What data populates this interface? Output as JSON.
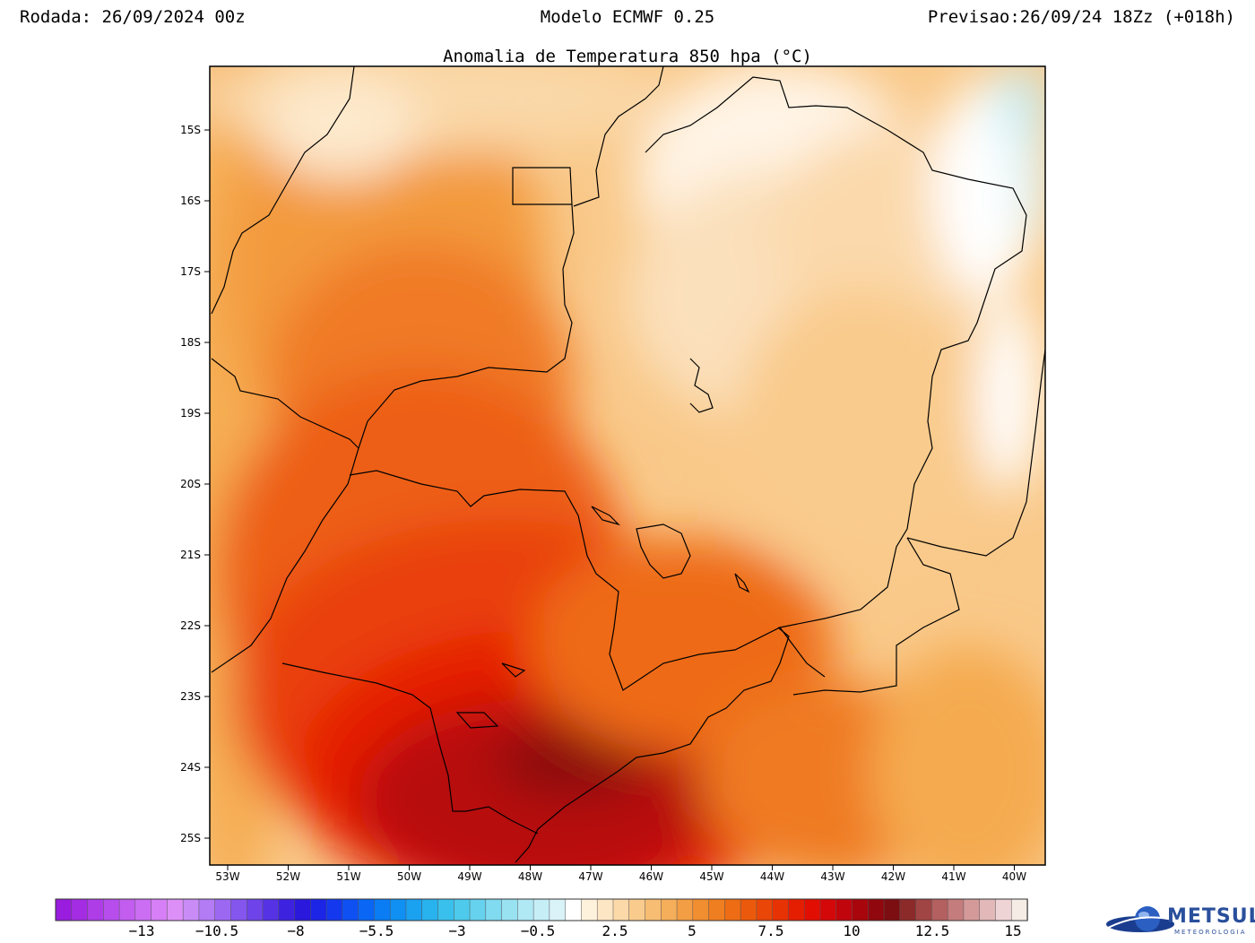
{
  "header": {
    "left": "Rodada: 26/09/2024 00z",
    "center": "Modelo ECMWF 0.25",
    "right": "Previsao:26/09/24 18Zz (+018h)"
  },
  "map": {
    "title": "Anomalia de Temperatura 850 hpa (°C)",
    "lat_labels": [
      "15S",
      "16S",
      "17S",
      "18S",
      "19S",
      "20S",
      "21S",
      "22S",
      "23S",
      "24S",
      "25S"
    ],
    "lon_labels": [
      "53W",
      "52W",
      "51W",
      "50W",
      "49W",
      "48W",
      "47W",
      "46W",
      "45W",
      "44W",
      "43W",
      "42W",
      "41W",
      "40W"
    ],
    "lat_range": [
      -25.4,
      -14.1
    ],
    "lon_range": [
      -53.4,
      -39.6
    ]
  },
  "colorbar": {
    "labels": [
      "−13",
      "−10.5",
      "−8",
      "−5.5",
      "−3",
      "−0.5",
      "2.5",
      "5",
      "7.5",
      "10",
      "12.5",
      "15"
    ],
    "colors": [
      "#9a1ddf",
      "#a42de3",
      "#ae3de8",
      "#b84ded",
      "#c25df0",
      "#cc6ef3",
      "#d67ff6",
      "#dd8ff8",
      "#c98cf7",
      "#b37bf4",
      "#9d68f1",
      "#8556ee",
      "#6e44ea",
      "#5532e4",
      "#3d22df",
      "#2a18dc",
      "#1c24e6",
      "#1438ee",
      "#0e50f2",
      "#0a66f4",
      "#0a7cf4",
      "#1090f2",
      "#1aa2f0",
      "#28b2ee",
      "#3ac0ec",
      "#4ecaec",
      "#66d2ee",
      "#80daf0",
      "#98e2f2",
      "#b0e8f4",
      "#c6eef6",
      "#daf3f8",
      "#ffffff",
      "#fff2dc",
      "#fde6c4",
      "#fbd9a8",
      "#f9cb8c",
      "#f7bd72",
      "#f5ae5a",
      "#f39e44",
      "#f18e30",
      "#ef7e20",
      "#ed6c14",
      "#eb5a0c",
      "#e94608",
      "#e73204",
      "#e51e02",
      "#e30e02",
      "#d40808",
      "#c0060c",
      "#a8060c",
      "#90080e",
      "#7c0e12",
      "#8c2a2a",
      "#a04444",
      "#b46060",
      "#c47c7c",
      "#d49a9a",
      "#e2b8b8",
      "#eed4d4",
      "#f6ece6"
    ]
  },
  "logo": {
    "name": "METSUL",
    "subtitle": "METEOROLOGIA"
  }
}
